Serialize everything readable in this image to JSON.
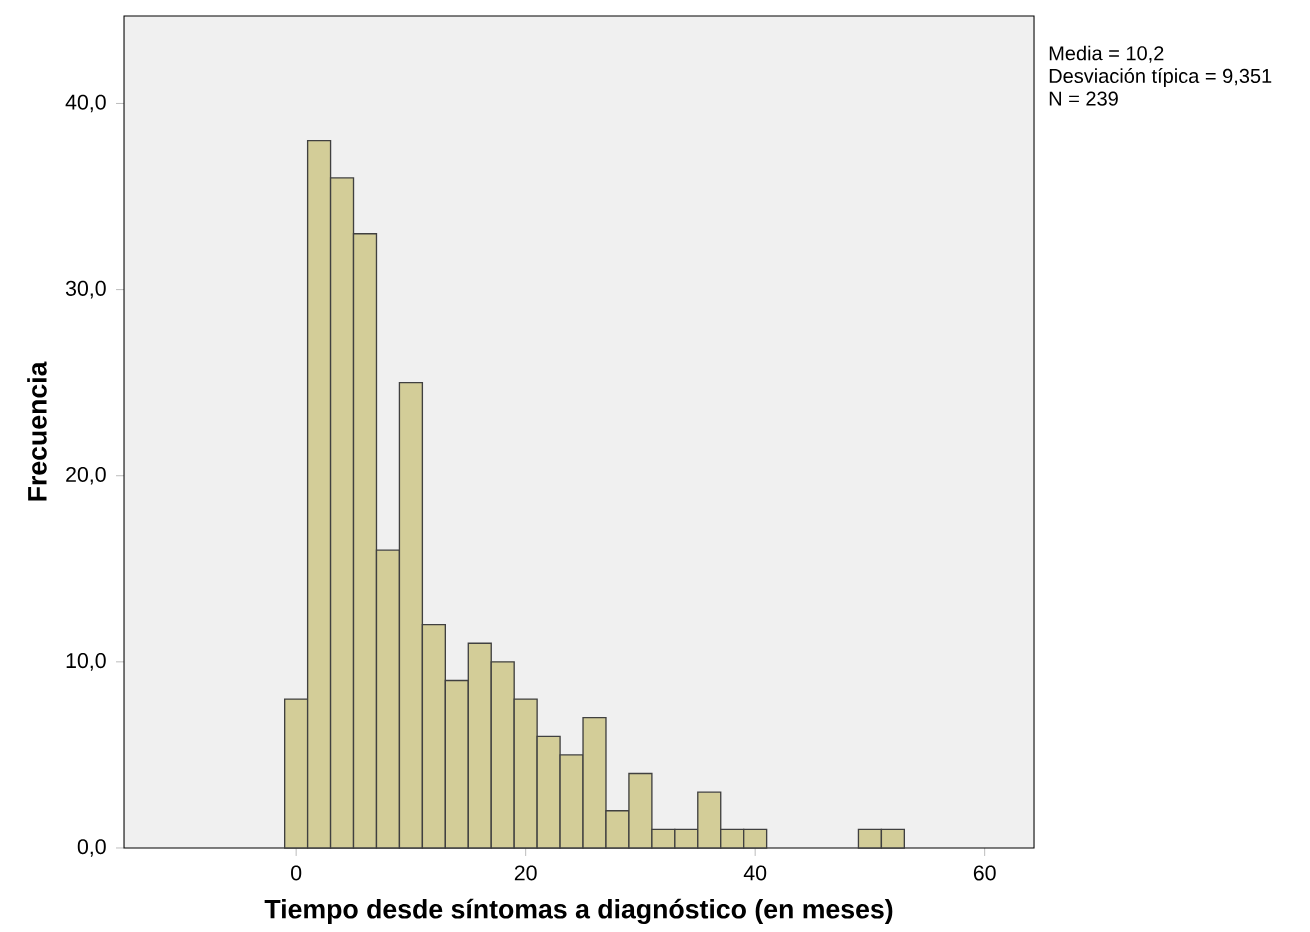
{
  "chart_data": {
    "type": "histogram",
    "xlabel": "Tiempo desde síntomas a diagnóstico (en meses)",
    "ylabel": "Frecuencia",
    "bins": [
      -1,
      1,
      3,
      5,
      7,
      9,
      11,
      13,
      15,
      17,
      19,
      21,
      23,
      25,
      27,
      29,
      31,
      33,
      35,
      37,
      39,
      41,
      43,
      45,
      47,
      49,
      51,
      53
    ],
    "values": [
      8,
      38,
      36,
      33,
      16,
      25,
      12,
      9,
      11,
      10,
      8,
      6,
      5,
      7,
      2,
      4,
      1,
      1,
      3,
      1,
      1,
      0,
      0,
      0,
      0,
      1,
      1
    ],
    "color": "#d3cd98",
    "xlim": [
      -15,
      64.3
    ],
    "ylim": [
      0,
      44.7
    ],
    "xticks": [
      0,
      20,
      40,
      60
    ],
    "yticks": [
      {
        "value": 0,
        "label": "0,0"
      },
      {
        "value": 10,
        "label": "10,0"
      },
      {
        "value": 20,
        "label": "20,0"
      },
      {
        "value": 30,
        "label": "30,0"
      },
      {
        "value": 40,
        "label": "40,0"
      }
    ],
    "annotations": [
      "Media = 10,2",
      "Desviación típica = 9,351",
      "N = 239"
    ]
  }
}
